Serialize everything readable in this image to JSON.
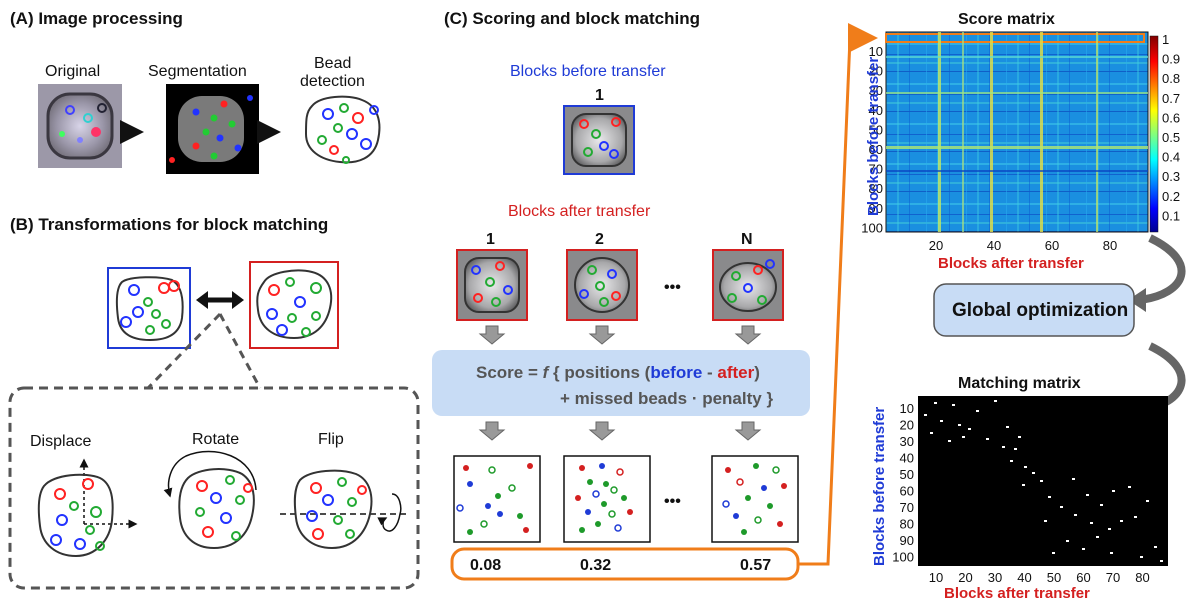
{
  "panel_a": {
    "title": "(A) Image processing",
    "original_label": "Original",
    "segmentation_label": "Segmentation",
    "bead_label_line1": "Bead",
    "bead_label_line2": "detection"
  },
  "panel_b": {
    "title": "(B) Transformations for block matching",
    "displace_label": "Displace",
    "rotate_label": "Rotate",
    "flip_label": "Flip"
  },
  "panel_c": {
    "title": "(C) Scoring and block matching",
    "before_label": "Blocks before transfer",
    "before_index": "1",
    "after_label": "Blocks after transfer",
    "after_indices": [
      "1",
      "2",
      "N"
    ],
    "ellipsis": "•••",
    "score_eq": "Score  =",
    "score_f": "f",
    "score_open": "{ positions (",
    "score_before": "before",
    "score_dash": " - ",
    "score_after": "after",
    "score_close": ")",
    "score_line2": "+ missed beads · penalty }",
    "scores": [
      "0.08",
      "0.32",
      "0.57"
    ]
  },
  "score_matrix": {
    "title": "Score matrix",
    "ylabel": "Blocks before transfer",
    "xlabel": "Blocks after transfer",
    "yticks": [
      "10",
      "20",
      "30",
      "40",
      "50",
      "60",
      "70",
      "80",
      "90",
      "100"
    ],
    "xticks": [
      "20",
      "40",
      "60",
      "80"
    ],
    "colorbar_ticks": [
      "1",
      "0.9",
      "0.8",
      "0.7",
      "0.6",
      "0.5",
      "0.4",
      "0.3",
      "0.2",
      "0.1"
    ]
  },
  "global_opt": {
    "label": "Global optimization"
  },
  "matching_matrix": {
    "title": "Matching matrix",
    "ylabel": "Blocks before transfer",
    "xlabel": "Blocks after transfer",
    "yticks": [
      "10",
      "20",
      "30",
      "40",
      "50",
      "60",
      "70",
      "80",
      "90",
      "100"
    ],
    "xticks": [
      "10",
      "20",
      "30",
      "40",
      "50",
      "60",
      "70",
      "80"
    ]
  },
  "colors": {
    "blue": "#1f3bd6",
    "red": "#d42020",
    "green": "#1e9a2a",
    "orange": "#f07d1a",
    "score_box": "#c8dcf5"
  }
}
